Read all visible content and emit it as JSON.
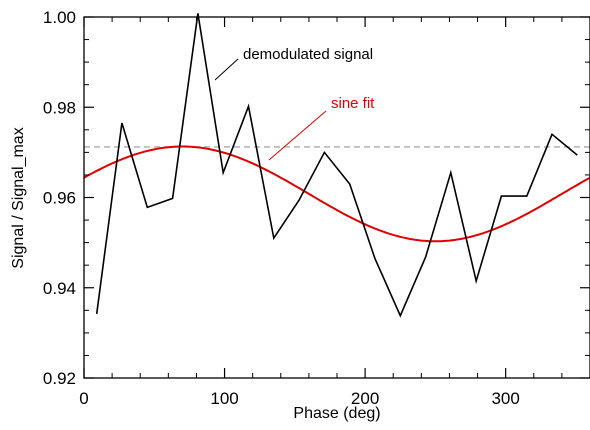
{
  "chart_data": {
    "type": "line",
    "title": "",
    "xlabel": "Phase (deg)",
    "ylabel": "Signal / Signal_max",
    "xlim": [
      0,
      360
    ],
    "ylim": [
      0.92,
      1.0
    ],
    "xticks": [
      0,
      100,
      200,
      300
    ],
    "xtick_labels": [
      "0",
      "100",
      "200",
      "300"
    ],
    "yticks": [
      0.92,
      0.94,
      0.96,
      0.98,
      1.0
    ],
    "ytick_labels": [
      "0.92",
      "0.94",
      "0.96",
      "0.98",
      "1.00"
    ],
    "grid": false,
    "series": [
      {
        "name": "demodulated signal",
        "color": "#000000",
        "x": [
          9,
          27,
          45,
          63,
          81,
          99,
          117,
          135,
          153,
          171,
          189,
          207,
          225,
          243,
          261,
          279,
          297,
          315,
          333,
          351
        ],
        "y": [
          0.9342,
          0.9765,
          0.9578,
          0.9598,
          1.0008,
          0.9655,
          0.9802,
          0.951,
          0.9594,
          0.97,
          0.963,
          0.9465,
          0.9338,
          0.9468,
          0.9655,
          0.9415,
          0.9603,
          0.9603,
          0.974,
          0.9694
        ]
      },
      {
        "name": "sine fit",
        "color": "#e00000",
        "style": "smooth curve",
        "amplitude": 0.0105,
        "offset": 0.9608,
        "peak_phase": 70
      }
    ],
    "reference_line": {
      "y": 0.9712,
      "style": "dashed",
      "color": "#aaaaaa"
    },
    "annotations": [
      {
        "text": "demodulated signal",
        "color": "#000000"
      },
      {
        "text": "sine fit",
        "color": "#e00000"
      }
    ]
  }
}
